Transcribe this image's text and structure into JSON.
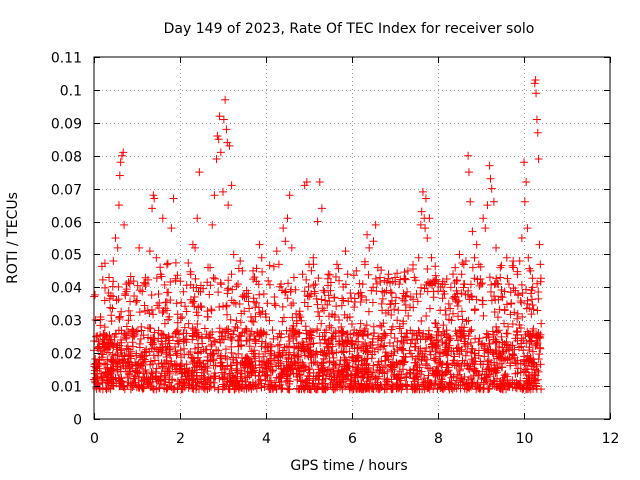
{
  "chart_data": {
    "type": "scatter",
    "title": "Day 149 of 2023, Rate Of TEC Index for receiver solo",
    "xlabel": "GPS time / hours",
    "ylabel": "ROTI / TECUs",
    "xlim": [
      0,
      12
    ],
    "ylim": [
      0,
      0.11
    ],
    "xticks": [
      0,
      2,
      4,
      6,
      8,
      10,
      12
    ],
    "xtick_labels": [
      "0",
      "2",
      "4",
      "6",
      "8",
      "10",
      "12"
    ],
    "yticks": [
      0,
      0.01,
      0.02,
      0.03,
      0.04,
      0.05,
      0.06,
      0.07,
      0.08,
      0.09,
      0.1,
      0.11
    ],
    "ytick_labels": [
      "0",
      "0.01",
      "0.02",
      "0.03",
      "0.04",
      "0.05",
      "0.06",
      "0.07",
      "0.08",
      "0.09",
      "0.1",
      "0.11"
    ],
    "grid": true,
    "marker": "+",
    "color": "#ff0000",
    "legend": "none",
    "series": [
      {
        "name": "ROTI",
        "x_range": [
          0,
          10.4
        ],
        "typical_band": [
          0.005,
          0.035
        ],
        "points": [
          [
            0.0,
            0.012
          ],
          [
            0.05,
            0.025
          ],
          [
            0.1,
            0.017
          ],
          [
            0.15,
            0.031
          ],
          [
            0.2,
            0.011
          ],
          [
            0.25,
            0.036
          ],
          [
            0.3,
            0.021
          ],
          [
            0.35,
            0.043
          ],
          [
            0.4,
            0.015
          ],
          [
            0.45,
            0.048
          ],
          [
            0.5,
            0.055
          ],
          [
            0.55,
            0.052
          ],
          [
            0.58,
            0.065
          ],
          [
            0.6,
            0.074
          ],
          [
            0.62,
            0.078
          ],
          [
            0.65,
            0.08
          ],
          [
            0.68,
            0.081
          ],
          [
            0.7,
            0.059
          ],
          [
            0.75,
            0.041
          ],
          [
            0.8,
            0.03
          ],
          [
            0.85,
            0.019
          ],
          [
            0.9,
            0.026
          ],
          [
            0.95,
            0.013
          ],
          [
            1.0,
            0.036
          ],
          [
            1.05,
            0.052
          ],
          [
            1.1,
            0.028
          ],
          [
            1.15,
            0.017
          ],
          [
            1.2,
            0.041
          ],
          [
            1.25,
            0.033
          ],
          [
            1.3,
            0.051
          ],
          [
            1.35,
            0.064
          ],
          [
            1.38,
            0.068
          ],
          [
            1.4,
            0.067
          ],
          [
            1.45,
            0.049
          ],
          [
            1.5,
            0.038
          ],
          [
            1.55,
            0.044
          ],
          [
            1.6,
            0.061
          ],
          [
            1.65,
            0.029
          ],
          [
            1.7,
            0.033
          ],
          [
            1.75,
            0.021
          ],
          [
            1.8,
            0.058
          ],
          [
            1.85,
            0.067
          ],
          [
            1.9,
            0.042
          ],
          [
            1.95,
            0.027
          ],
          [
            2.0,
            0.016
          ],
          [
            2.05,
            0.031
          ],
          [
            2.1,
            0.024
          ],
          [
            2.15,
            0.012
          ],
          [
            2.2,
            0.029
          ],
          [
            2.25,
            0.044
          ],
          [
            2.3,
            0.053
          ],
          [
            2.35,
            0.052
          ],
          [
            2.4,
            0.061
          ],
          [
            2.45,
            0.075
          ],
          [
            2.5,
            0.034
          ],
          [
            2.55,
            0.021
          ],
          [
            2.6,
            0.016
          ],
          [
            2.65,
            0.031
          ],
          [
            2.7,
            0.046
          ],
          [
            2.75,
            0.059
          ],
          [
            2.8,
            0.068
          ],
          [
            2.85,
            0.079
          ],
          [
            2.87,
            0.086
          ],
          [
            2.9,
            0.085
          ],
          [
            2.92,
            0.092
          ],
          [
            2.95,
            0.081
          ],
          [
            3.0,
            0.069
          ],
          [
            3.02,
            0.091
          ],
          [
            3.05,
            0.097
          ],
          [
            3.08,
            0.088
          ],
          [
            3.1,
            0.084
          ],
          [
            3.12,
            0.065
          ],
          [
            3.15,
            0.083
          ],
          [
            3.2,
            0.071
          ],
          [
            3.25,
            0.05
          ],
          [
            3.3,
            0.035
          ],
          [
            3.35,
            0.041
          ],
          [
            3.4,
            0.048
          ],
          [
            3.45,
            0.045
          ],
          [
            3.5,
            0.037
          ],
          [
            3.55,
            0.027
          ],
          [
            3.6,
            0.018
          ],
          [
            3.65,
            0.031
          ],
          [
            3.7,
            0.045
          ],
          [
            3.75,
            0.034
          ],
          [
            3.8,
            0.026
          ],
          [
            3.85,
            0.053
          ],
          [
            3.9,
            0.049
          ],
          [
            3.95,
            0.038
          ],
          [
            4.0,
            0.031
          ],
          [
            4.05,
            0.022
          ],
          [
            4.1,
            0.016
          ],
          [
            4.15,
            0.027
          ],
          [
            4.2,
            0.035
          ],
          [
            4.25,
            0.051
          ],
          [
            4.3,
            0.047
          ],
          [
            4.35,
            0.041
          ],
          [
            4.4,
            0.058
          ],
          [
            4.45,
            0.054
          ],
          [
            4.5,
            0.061
          ],
          [
            4.55,
            0.068
          ],
          [
            4.6,
            0.052
          ],
          [
            4.65,
            0.043
          ],
          [
            4.7,
            0.032
          ],
          [
            4.75,
            0.026
          ],
          [
            4.8,
            0.031
          ],
          [
            4.85,
            0.044
          ],
          [
            4.9,
            0.071
          ],
          [
            4.95,
            0.072
          ],
          [
            5.0,
            0.047
          ],
          [
            5.05,
            0.038
          ],
          [
            5.1,
            0.049
          ],
          [
            5.15,
            0.041
          ],
          [
            5.2,
            0.06
          ],
          [
            5.25,
            0.072
          ],
          [
            5.3,
            0.064
          ],
          [
            5.35,
            0.033
          ],
          [
            5.4,
            0.027
          ],
          [
            5.45,
            0.044
          ],
          [
            5.5,
            0.039
          ],
          [
            5.55,
            0.022
          ],
          [
            5.6,
            0.031
          ],
          [
            5.65,
            0.047
          ],
          [
            5.7,
            0.042
          ],
          [
            5.75,
            0.028
          ],
          [
            5.8,
            0.036
          ],
          [
            5.85,
            0.051
          ],
          [
            5.9,
            0.044
          ],
          [
            5.95,
            0.031
          ],
          [
            6.0,
            0.023
          ],
          [
            6.05,
            0.034
          ],
          [
            6.1,
            0.045
          ],
          [
            6.15,
            0.038
          ],
          [
            6.2,
            0.029
          ],
          [
            6.25,
            0.041
          ],
          [
            6.3,
            0.047
          ],
          [
            6.35,
            0.056
          ],
          [
            6.4,
            0.052
          ],
          [
            6.45,
            0.039
          ],
          [
            6.5,
            0.054
          ],
          [
            6.55,
            0.059
          ],
          [
            6.6,
            0.046
          ],
          [
            6.65,
            0.043
          ],
          [
            6.7,
            0.033
          ],
          [
            6.75,
            0.026
          ],
          [
            6.8,
            0.039
          ],
          [
            6.85,
            0.044
          ],
          [
            6.9,
            0.035
          ],
          [
            6.95,
            0.028
          ],
          [
            7.0,
            0.043
          ],
          [
            7.05,
            0.03
          ],
          [
            7.1,
            0.041
          ],
          [
            7.15,
            0.026
          ],
          [
            7.2,
            0.019
          ],
          [
            7.25,
            0.033
          ],
          [
            7.3,
            0.045
          ],
          [
            7.35,
            0.034
          ],
          [
            7.4,
            0.024
          ],
          [
            7.45,
            0.043
          ],
          [
            7.5,
            0.038
          ],
          [
            7.55,
            0.049
          ],
          [
            7.6,
            0.059
          ],
          [
            7.62,
            0.063
          ],
          [
            7.65,
            0.069
          ],
          [
            7.68,
            0.061
          ],
          [
            7.7,
            0.058
          ],
          [
            7.72,
            0.067
          ],
          [
            7.75,
            0.055
          ],
          [
            7.8,
            0.061
          ],
          [
            7.85,
            0.049
          ],
          [
            7.9,
            0.037
          ],
          [
            7.95,
            0.029
          ],
          [
            8.0,
            0.024
          ],
          [
            8.05,
            0.033
          ],
          [
            8.1,
            0.041
          ],
          [
            8.15,
            0.038
          ],
          [
            8.2,
            0.027
          ],
          [
            8.25,
            0.035
          ],
          [
            8.3,
            0.04
          ],
          [
            8.35,
            0.032
          ],
          [
            8.4,
            0.046
          ],
          [
            8.45,
            0.038
          ],
          [
            8.5,
            0.05
          ],
          [
            8.55,
            0.044
          ],
          [
            8.6,
            0.041
          ],
          [
            8.65,
            0.048
          ],
          [
            8.7,
            0.08
          ],
          [
            8.72,
            0.075
          ],
          [
            8.75,
            0.066
          ],
          [
            8.8,
            0.057
          ],
          [
            8.85,
            0.049
          ],
          [
            8.9,
            0.053
          ],
          [
            8.95,
            0.047
          ],
          [
            9.0,
            0.041
          ],
          [
            9.05,
            0.061
          ],
          [
            9.1,
            0.058
          ],
          [
            9.15,
            0.065
          ],
          [
            9.2,
            0.077
          ],
          [
            9.22,
            0.073
          ],
          [
            9.25,
            0.07
          ],
          [
            9.3,
            0.066
          ],
          [
            9.35,
            0.052
          ],
          [
            9.4,
            0.041
          ],
          [
            9.45,
            0.046
          ],
          [
            9.5,
            0.037
          ],
          [
            9.55,
            0.033
          ],
          [
            9.6,
            0.049
          ],
          [
            9.65,
            0.041
          ],
          [
            9.7,
            0.035
          ],
          [
            9.75,
            0.048
          ],
          [
            9.8,
            0.039
          ],
          [
            9.85,
            0.044
          ],
          [
            9.9,
            0.048
          ],
          [
            9.95,
            0.055
          ],
          [
            10.0,
            0.078
          ],
          [
            10.02,
            0.066
          ],
          [
            10.05,
            0.072
          ],
          [
            10.08,
            0.058
          ],
          [
            10.1,
            0.049
          ],
          [
            10.15,
            0.045
          ],
          [
            10.2,
            0.04
          ],
          [
            10.25,
            0.102
          ],
          [
            10.27,
            0.103
          ],
          [
            10.28,
            0.099
          ],
          [
            10.3,
            0.091
          ],
          [
            10.32,
            0.087
          ],
          [
            10.34,
            0.079
          ],
          [
            10.36,
            0.053
          ],
          [
            10.38,
            0.047
          ],
          [
            10.4,
            0.029
          ]
        ]
      }
    ]
  }
}
